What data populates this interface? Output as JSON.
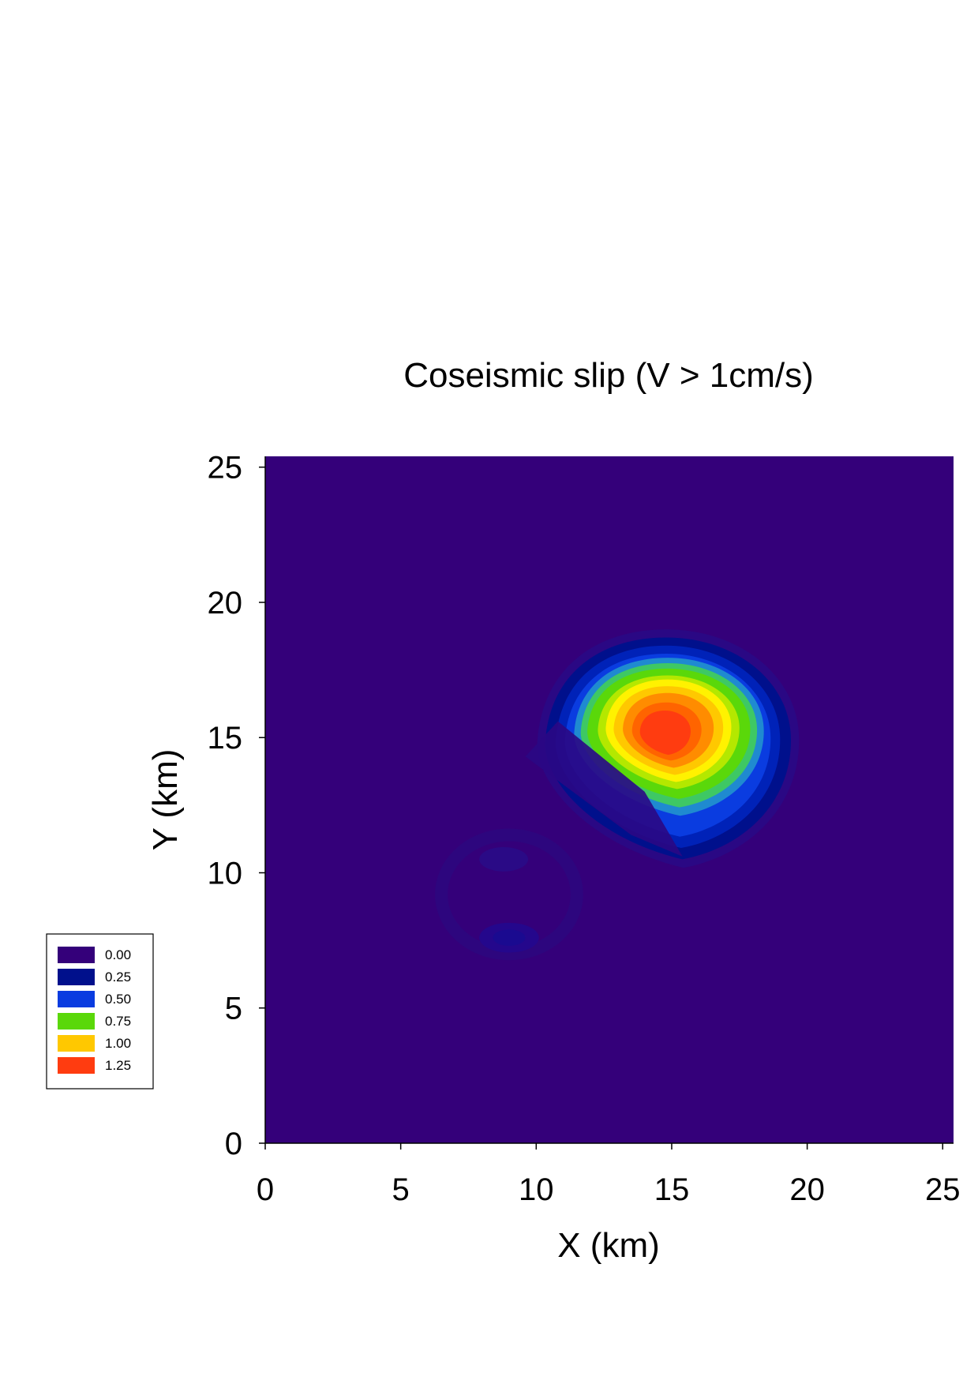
{
  "chart_data": {
    "type": "heatmap",
    "title": "Coseismic slip (V > 1cm/s)",
    "xlabel": "X (km)",
    "ylabel": "Y (km)",
    "xlim": [
      0,
      25.4
    ],
    "ylim": [
      0,
      25.4
    ],
    "x_ticks": [
      "0",
      "5",
      "10",
      "15",
      "20",
      "25"
    ],
    "x_tick_values": [
      0,
      5,
      10,
      15,
      20,
      25
    ],
    "y_ticks": [
      "0",
      "5",
      "10",
      "15",
      "20",
      "25"
    ],
    "y_tick_values": [
      0,
      5,
      10,
      15,
      20,
      25
    ],
    "grid": false,
    "legend_position": "left",
    "legend": [
      {
        "label": "0.00",
        "color": "#34007a"
      },
      {
        "label": "0.25",
        "color": "#00108c"
      },
      {
        "label": "0.50",
        "color": "#0a3ce0"
      },
      {
        "label": "0.75",
        "color": "#5ad80a"
      },
      {
        "label": "1.00",
        "color": "#ffc800"
      },
      {
        "label": "1.25",
        "color": "#ff3c10"
      }
    ],
    "features": [
      {
        "name": "main slip patch",
        "center": [
          14.8,
          15.0
        ],
        "peak_slip": 1.3,
        "extent_x": [
          9.6,
          19.5
        ],
        "extent_y": [
          10.5,
          19.0
        ]
      },
      {
        "name": "secondary low-slip ring",
        "center": [
          9.0,
          9.2
        ],
        "peak_slip": 0.12,
        "extent_x": [
          6.5,
          11.7
        ],
        "extent_y": [
          6.9,
          11.4
        ]
      }
    ]
  }
}
